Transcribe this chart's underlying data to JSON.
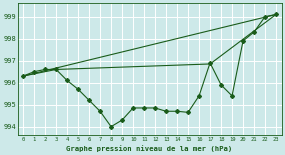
{
  "background_color": "#cde9e9",
  "grid_color": "#b0d8d8",
  "line_color": "#1a5c1a",
  "title": "Graphe pression niveau de la mer (hPa)",
  "xlim": [
    -0.5,
    23.5
  ],
  "ylim": [
    993.6,
    999.6
  ],
  "yticks": [
    994,
    995,
    996,
    997,
    998,
    999
  ],
  "xticks": [
    0,
    1,
    2,
    3,
    4,
    5,
    6,
    7,
    8,
    9,
    10,
    11,
    12,
    13,
    14,
    15,
    16,
    17,
    18,
    19,
    20,
    21,
    22,
    23
  ],
  "series1_x": [
    0,
    1,
    2,
    3,
    4,
    5,
    6,
    7,
    8,
    9,
    10,
    11,
    12,
    13,
    14,
    15,
    16,
    17,
    18,
    19,
    20,
    21,
    22,
    23
  ],
  "series1_y": [
    996.3,
    996.5,
    996.6,
    996.6,
    996.1,
    995.7,
    995.2,
    994.7,
    994.0,
    994.3,
    994.85,
    994.85,
    994.85,
    994.7,
    994.7,
    994.65,
    995.4,
    996.9,
    995.9,
    995.4,
    997.9,
    998.3,
    999.0,
    999.1
  ],
  "series2_x": [
    0,
    23
  ],
  "series2_y": [
    996.3,
    999.1
  ],
  "series3_x": [
    0,
    3,
    17,
    23
  ],
  "series3_y": [
    996.3,
    996.6,
    996.85,
    999.1
  ]
}
